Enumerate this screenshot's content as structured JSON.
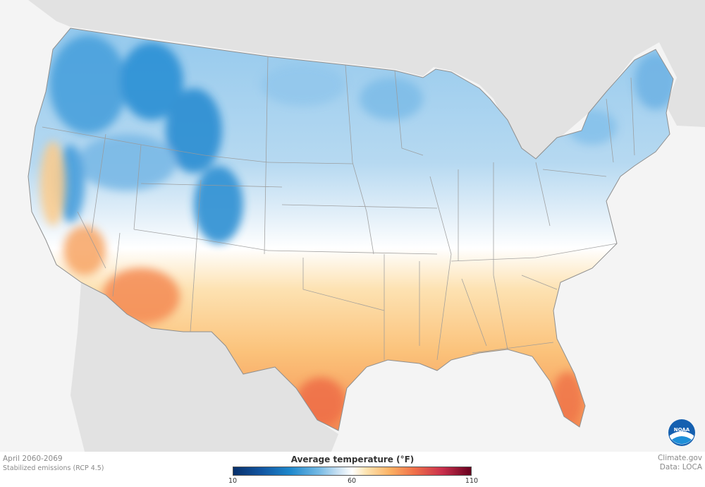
{
  "map": {
    "region": "Contiguous United States",
    "variable": "Average temperature",
    "colors": {
      "cold": "#1e88cc",
      "cool": "#9fcdef",
      "neutral": "#ffffff",
      "warm": "#fbc77f",
      "hot": "#f0714a",
      "land_outside": "#e2e2e2",
      "water": "#f4f4f4",
      "boundaries": "#8f8f8f"
    }
  },
  "caption": {
    "period": "April 2060-2069",
    "scenario": "Stabilized emissions (RCP 4.5)"
  },
  "legend": {
    "title": "Average temperature (°F)",
    "min_label": "10",
    "mid_label": "60",
    "max_label": "110",
    "range": [
      10,
      110
    ],
    "gradient_stops": [
      "#08306b",
      "#1e88cc",
      "#c8e0f2",
      "#ffffff",
      "#fbb163",
      "#f0714a",
      "#67001f"
    ]
  },
  "credits": {
    "source": "Climate.gov",
    "data": "Data: LOCA",
    "logo_text": "NOAA"
  }
}
